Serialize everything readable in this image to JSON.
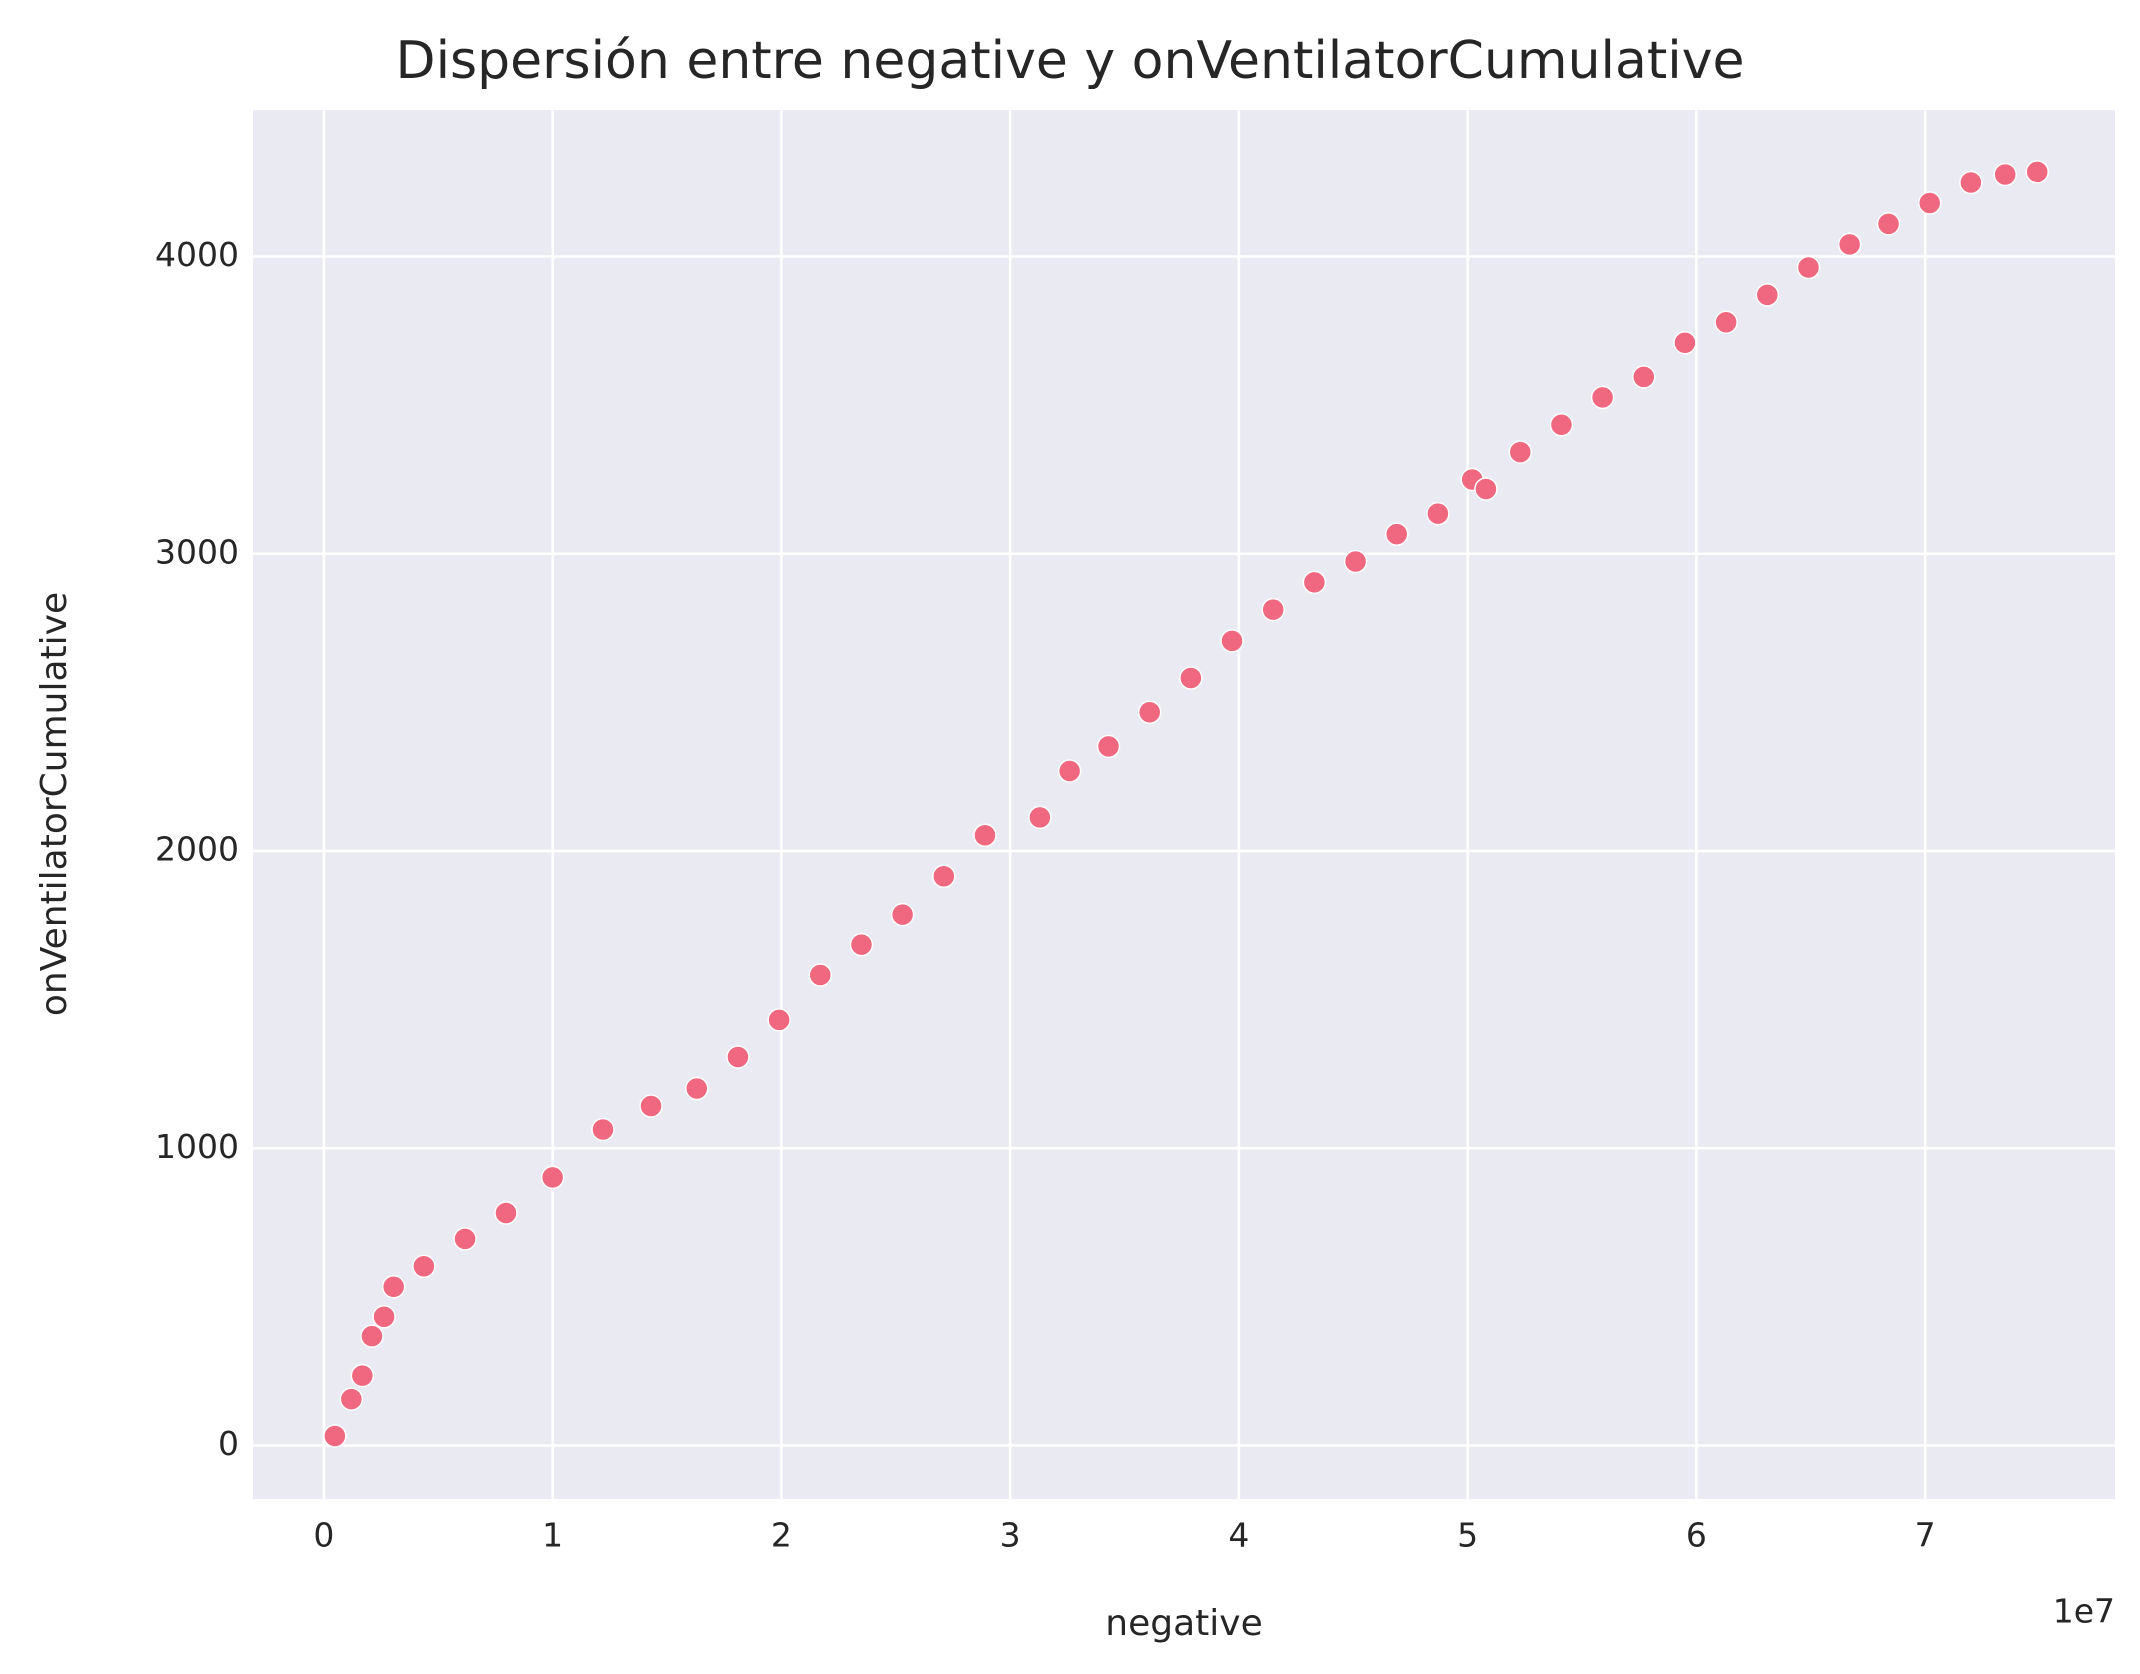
{
  "chart_data": {
    "type": "scatter",
    "title": "Dispersión entre negative y onVentilatorCumulative",
    "x_label": "negative",
    "y_label": "onVentilatorCumulative",
    "x_offset_label": "1e7",
    "color": "#f0687f",
    "grid": true,
    "xlim": [
      -3100000,
      78300000
    ],
    "ylim": [
      -180,
      4493
    ],
    "xticks": [
      {
        "value": 0,
        "label": "0"
      },
      {
        "value": 10000000,
        "label": "1"
      },
      {
        "value": 20000000,
        "label": "2"
      },
      {
        "value": 30000000,
        "label": "3"
      },
      {
        "value": 40000000,
        "label": "4"
      },
      {
        "value": 50000000,
        "label": "5"
      },
      {
        "value": 60000000,
        "label": "6"
      },
      {
        "value": 70000000,
        "label": "7"
      }
    ],
    "yticks": [
      0,
      1000,
      2000,
      3000,
      4000
    ],
    "x": [
      480000,
      1200000,
      1680000,
      2100000,
      2630000,
      3050000,
      4370000,
      6170000,
      7960000,
      10000000,
      12200000,
      14300000,
      16300000,
      18100000,
      19900000,
      21700000,
      23500000,
      25300000,
      27100000,
      28900000,
      31300000,
      32600000,
      34300000,
      36100000,
      37900000,
      39700000,
      41500000,
      43300000,
      45100000,
      46900000,
      48700000,
      50200000,
      50800000,
      52300000,
      54100000,
      55900000,
      57700000,
      59500000,
      61300000,
      63100000,
      64900000,
      66700000,
      68400000,
      70200000,
      72000000,
      73500000,
      74900000
    ],
    "y": [
      32,
      156,
      235,
      368,
      433,
      534,
      603,
      695,
      782,
      902,
      1063,
      1142,
      1201,
      1307,
      1432,
      1583,
      1685,
      1786,
      1915,
      2053,
      2113,
      2269,
      2352,
      2467,
      2582,
      2707,
      2812,
      2904,
      2974,
      3066,
      3135,
      3250,
      3218,
      3342,
      3434,
      3526,
      3595,
      3710,
      3779,
      3871,
      3963,
      4041,
      4110,
      4180,
      4249,
      4276,
      4285
    ]
  }
}
